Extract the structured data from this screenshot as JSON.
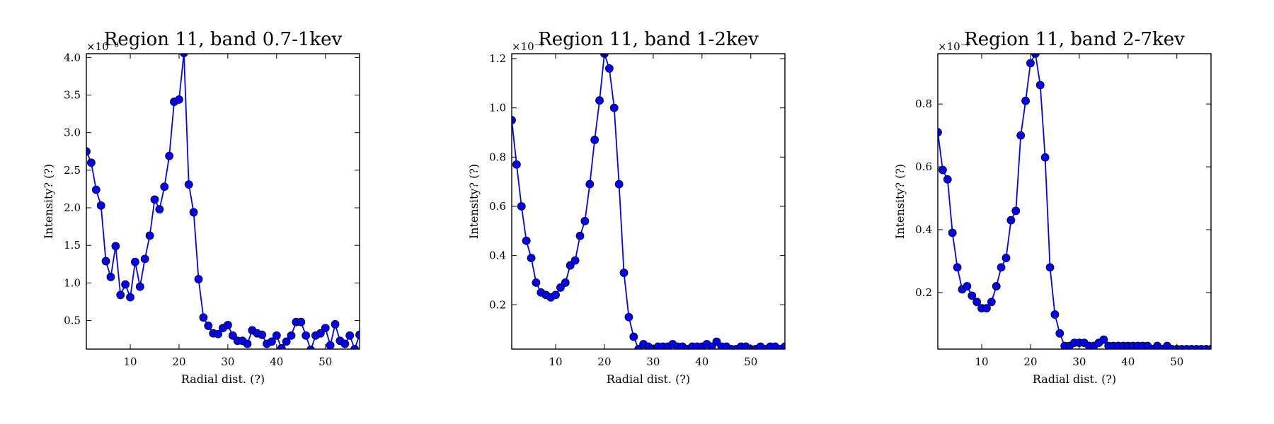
{
  "chart_data": [
    {
      "type": "line",
      "title": "Region 11, band 0.7-1kev",
      "xlabel": "Radial dist. (?)",
      "ylabel": "Intensity? (?)",
      "y_offset_label": "×10⁻⁸",
      "xlim": [
        1,
        57
      ],
      "ylim": [
        0.12,
        4.05
      ],
      "xticks": [
        10,
        20,
        30,
        40,
        50
      ],
      "yticks": [
        0.5,
        1.0,
        1.5,
        2.0,
        2.5,
        3.0,
        3.5,
        4.0
      ],
      "ytick_labels": [
        "0.5",
        "1.0",
        "1.5",
        "2.0",
        "2.5",
        "3.0",
        "3.5",
        "4.0"
      ],
      "marker": "circle",
      "color": "#0000ff",
      "x": [
        1,
        2,
        3,
        4,
        5,
        6,
        7,
        8,
        9,
        10,
        11,
        12,
        13,
        14,
        15,
        16,
        17,
        18,
        19,
        20,
        21,
        22,
        23,
        24,
        25,
        26,
        27,
        28,
        29,
        30,
        31,
        32,
        33,
        34,
        35,
        36,
        37,
        38,
        39,
        40,
        41,
        42,
        43,
        44,
        45,
        46,
        47,
        48,
        49,
        50,
        51,
        52,
        53,
        54,
        55,
        56,
        57
      ],
      "y": [
        2.75,
        2.6,
        2.24,
        2.03,
        1.29,
        1.08,
        1.49,
        0.84,
        0.98,
        0.81,
        1.28,
        0.95,
        1.32,
        1.63,
        2.11,
        1.98,
        2.28,
        2.69,
        3.41,
        3.44,
        4.06,
        2.31,
        1.94,
        1.05,
        0.54,
        0.43,
        0.33,
        0.32,
        0.4,
        0.44,
        0.3,
        0.23,
        0.23,
        0.19,
        0.37,
        0.33,
        0.31,
        0.19,
        0.22,
        0.3,
        0.13,
        0.22,
        0.3,
        0.48,
        0.48,
        0.3,
        0.11,
        0.3,
        0.33,
        0.4,
        0.17,
        0.45,
        0.23,
        0.19,
        0.3,
        0.12,
        0.31
      ]
    },
    {
      "type": "line",
      "title": "Region 11, band 1-2kev",
      "xlabel": "Radial dist. (?)",
      "ylabel": "Intensity? (?)",
      "y_offset_label": "×10⁻⁷",
      "xlim": [
        1,
        57
      ],
      "ylim": [
        0.02,
        1.22
      ],
      "xticks": [
        10,
        20,
        30,
        40,
        50
      ],
      "yticks": [
        0.2,
        0.4,
        0.6,
        0.8,
        1.0,
        1.2
      ],
      "ytick_labels": [
        "0.2",
        "0.4",
        "0.6",
        "0.8",
        "1.0",
        "1.2"
      ],
      "marker": "circle",
      "color": "#0000ff",
      "x": [
        1,
        2,
        3,
        4,
        5,
        6,
        7,
        8,
        9,
        10,
        11,
        12,
        13,
        14,
        15,
        16,
        17,
        18,
        19,
        20,
        21,
        22,
        23,
        24,
        25,
        26,
        27,
        28,
        29,
        30,
        31,
        32,
        33,
        34,
        35,
        36,
        37,
        38,
        39,
        40,
        41,
        42,
        43,
        44,
        45,
        46,
        47,
        48,
        49,
        50,
        51,
        52,
        53,
        54,
        55,
        56,
        57
      ],
      "y": [
        0.95,
        0.77,
        0.6,
        0.46,
        0.39,
        0.29,
        0.25,
        0.24,
        0.23,
        0.24,
        0.27,
        0.29,
        0.36,
        0.38,
        0.48,
        0.54,
        0.69,
        0.87,
        1.03,
        1.22,
        1.16,
        1.0,
        0.69,
        0.33,
        0.15,
        0.07,
        0.02,
        0.04,
        0.03,
        0.02,
        0.03,
        0.03,
        0.03,
        0.04,
        0.03,
        0.03,
        0.02,
        0.03,
        0.03,
        0.03,
        0.04,
        0.03,
        0.05,
        0.03,
        0.03,
        0.02,
        0.02,
        0.03,
        0.03,
        0.02,
        0.02,
        0.03,
        0.02,
        0.03,
        0.03,
        0.02,
        0.03
      ]
    },
    {
      "type": "line",
      "title": "Region 11, band 2-7kev",
      "xlabel": "Radial dist. (?)",
      "ylabel": "Intensity? (?)",
      "y_offset_label": "×10⁻⁷",
      "xlim": [
        1,
        57
      ],
      "ylim": [
        0.02,
        0.96
      ],
      "xticks": [
        10,
        20,
        30,
        40,
        50
      ],
      "yticks": [
        0.2,
        0.4,
        0.6,
        0.8
      ],
      "ytick_labels": [
        "0.2",
        "0.4",
        "0.6",
        "0.8"
      ],
      "marker": "circle",
      "color": "#0000ff",
      "x": [
        1,
        2,
        3,
        4,
        5,
        6,
        7,
        8,
        9,
        10,
        11,
        12,
        13,
        14,
        15,
        16,
        17,
        18,
        19,
        20,
        21,
        22,
        23,
        24,
        25,
        26,
        27,
        28,
        29,
        30,
        31,
        32,
        33,
        34,
        35,
        36,
        37,
        38,
        39,
        40,
        41,
        42,
        43,
        44,
        45,
        46,
        47,
        48,
        49,
        50,
        51,
        52,
        53,
        54,
        55,
        56,
        57
      ],
      "y": [
        0.71,
        0.59,
        0.56,
        0.39,
        0.28,
        0.21,
        0.22,
        0.19,
        0.17,
        0.15,
        0.15,
        0.17,
        0.22,
        0.28,
        0.31,
        0.43,
        0.46,
        0.7,
        0.81,
        0.93,
        0.96,
        0.86,
        0.63,
        0.28,
        0.13,
        0.07,
        0.03,
        0.03,
        0.04,
        0.04,
        0.04,
        0.03,
        0.03,
        0.04,
        0.05,
        0.03,
        0.03,
        0.03,
        0.03,
        0.03,
        0.03,
        0.03,
        0.03,
        0.03,
        0.02,
        0.03,
        0.02,
        0.03,
        0.02,
        0.02,
        0.02,
        0.02,
        0.02,
        0.02,
        0.02,
        0.02,
        0.02
      ]
    }
  ]
}
